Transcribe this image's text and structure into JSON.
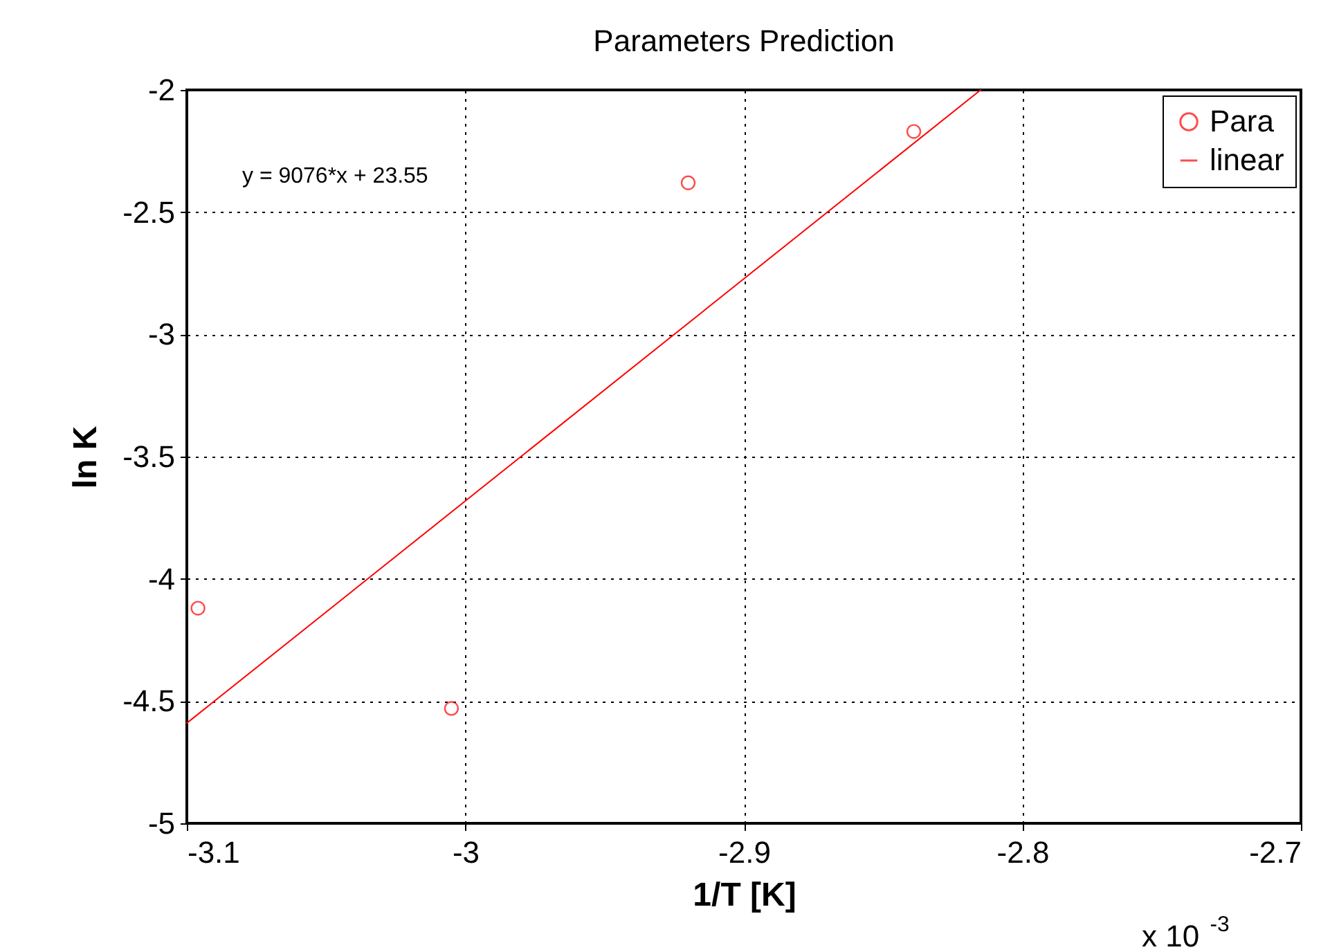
{
  "chart_data": {
    "type": "scatter",
    "title": "Parameters Prediction",
    "xlabel": "1/T [K]",
    "ylabel": "ln K",
    "annotations": [
      "y = 9076*x + 23.55",
      "x 10$^{-3}$"
    ],
    "xlim": [
      -3.1,
      -2.7
    ],
    "xticks": [
      -3.1,
      -3,
      -2.9,
      -2.8,
      -2.7
    ],
    "ylim": [
      -5,
      -2
    ],
    "yticks": [
      -5,
      -4.5,
      -4,
      -3.5,
      -3,
      -2.5,
      -2
    ],
    "grid": true,
    "legend": "top right",
    "series": [
      {
        "name": "Para",
        "marker": "circle",
        "color": "#ff0000",
        "x": [
          -3.096,
          -3.005,
          -2.92,
          -2.839
        ],
        "values": [
          -4.12,
          -4.53,
          -2.38,
          -2.17
        ]
      },
      {
        "name": "linear",
        "type": "line",
        "color": "#ff0000",
        "x": [
          -3.1,
          -2.815
        ],
        "values": [
          -4.59,
          -2
        ]
      }
    ]
  }
}
